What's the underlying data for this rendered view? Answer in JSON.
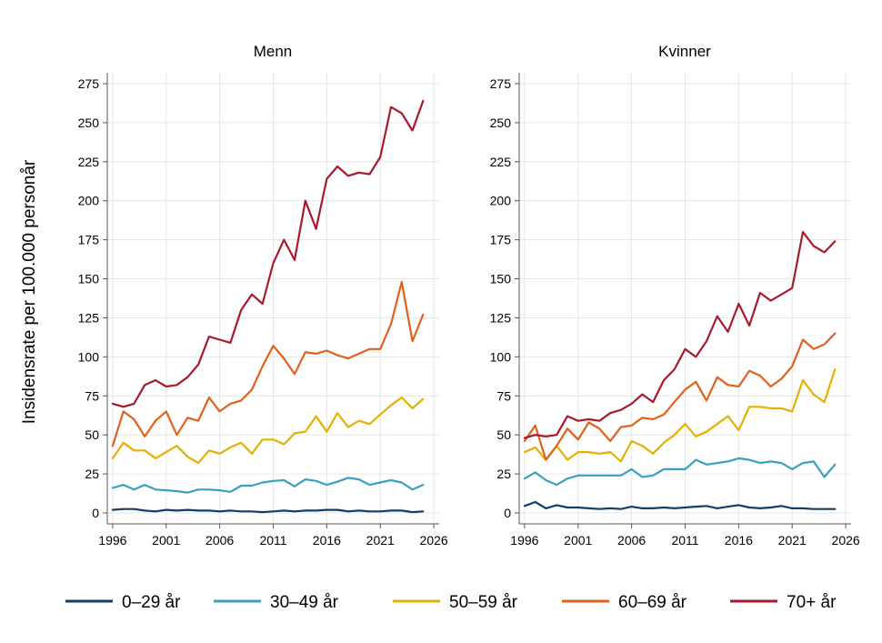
{
  "chart_data": {
    "type": "line",
    "ylabel": "Insidensrate per 100.000 personår",
    "x": [
      1996,
      1997,
      1998,
      1999,
      2000,
      2001,
      2002,
      2003,
      2004,
      2005,
      2006,
      2007,
      2008,
      2009,
      2010,
      2011,
      2012,
      2013,
      2014,
      2015,
      2016,
      2017,
      2018,
      2019,
      2020,
      2021,
      2022,
      2023,
      2024,
      2025
    ],
    "xticks": [
      1996,
      2001,
      2006,
      2011,
      2016,
      2021,
      2026
    ],
    "yticks": [
      0,
      25,
      50,
      75,
      100,
      125,
      150,
      175,
      200,
      225,
      250,
      275
    ],
    "xlim": [
      1995.5,
      2026.5
    ],
    "ylim": [
      0,
      285
    ],
    "grid": true,
    "legend_position": "bottom",
    "colors": {
      "0–29 år": "#123f66",
      "30–49 år": "#3aa0c0",
      "50–59 år": "#e5b100",
      "60–69 år": "#e35f1c",
      "70+ år": "#a8192d"
    },
    "series_names": [
      "0–29 år",
      "30–49 år",
      "50–59 år",
      "60–69 år",
      "70+ år"
    ],
    "panels": [
      {
        "title": "Menn",
        "series": [
          {
            "name": "0–29 år",
            "values": [
              2,
              2.5,
              2.5,
              1.5,
              1,
              2,
              1.5,
              2,
              1.5,
              1.5,
              1,
              1.5,
              1,
              1,
              0.5,
              1,
              1.5,
              1,
              1.5,
              1.5,
              2,
              2,
              1,
              1.5,
              1,
              1,
              1.5,
              1.5,
              0.5,
              1
            ]
          },
          {
            "name": "30–49 år",
            "values": [
              16,
              18,
              15,
              18,
              15,
              14.5,
              14,
              13,
              15,
              15,
              14.5,
              13.5,
              17.5,
              17.5,
              19.5,
              20.5,
              21,
              17,
              21.5,
              20.5,
              18,
              20,
              22.5,
              21.5,
              18,
              19.5,
              21,
              19.5,
              15,
              18
            ]
          },
          {
            "name": "50–59 år",
            "values": [
              35,
              45,
              40,
              40,
              35,
              39,
              43,
              36,
              32,
              40,
              38,
              42,
              45,
              38,
              47,
              47,
              44,
              51,
              52,
              62,
              52,
              64,
              55,
              59,
              57,
              63,
              69,
              74,
              67,
              73
            ]
          },
          {
            "name": "60–69 år",
            "values": [
              43,
              65,
              60,
              49,
              59,
              65,
              50,
              61,
              59,
              74,
              65,
              70,
              72,
              79,
              94,
              107,
              99,
              89,
              103,
              102,
              104,
              101,
              99,
              102,
              105,
              105,
              121,
              148,
              110,
              127
            ]
          },
          {
            "name": "70+ år",
            "values": [
              70,
              68,
              70,
              82,
              85,
              81,
              82,
              87,
              95,
              113,
              111,
              109,
              130,
              140,
              134,
              160,
              175,
              162,
              200,
              182,
              214,
              222,
              216,
              218,
              217,
              228,
              260,
              256,
              245,
              264
            ]
          }
        ]
      },
      {
        "title": "Kvinner",
        "series": [
          {
            "name": "0–29 år",
            "values": [
              4.5,
              7,
              3,
              5,
              3.5,
              3.5,
              3,
              2.5,
              3,
              2.5,
              4,
              3,
              3,
              3.5,
              3,
              3.5,
              4,
              4.5,
              3,
              4,
              5,
              3.5,
              3,
              3.5,
              4.5,
              3,
              3,
              2.5,
              2.5,
              2.5
            ]
          },
          {
            "name": "30–49 år",
            "values": [
              22,
              26,
              21,
              18,
              22,
              24,
              24,
              24,
              24,
              24,
              28,
              23,
              24,
              28,
              28,
              28,
              34,
              31,
              32,
              33,
              35,
              34,
              32,
              33,
              32,
              28,
              32,
              33,
              23,
              31
            ]
          },
          {
            "name": "50–59 år",
            "values": [
              39,
              42,
              34,
              43,
              34,
              39,
              39,
              38,
              39,
              33,
              46,
              43,
              38,
              45,
              50,
              57,
              49,
              52,
              57,
              62,
              53,
              68,
              68,
              67,
              67,
              65,
              85,
              76,
              71,
              92
            ]
          },
          {
            "name": "60–69 år",
            "values": [
              46,
              56,
              34,
              43,
              54,
              47,
              58,
              54,
              46,
              55,
              56,
              61,
              60,
              63,
              71,
              79,
              84,
              72,
              87,
              82,
              81,
              91,
              88,
              81,
              86,
              94,
              111,
              105,
              108,
              115
            ]
          },
          {
            "name": "70+ år",
            "values": [
              48,
              50,
              49,
              50,
              62,
              59,
              60,
              59,
              64,
              66,
              70,
              76,
              71,
              85,
              92,
              105,
              100,
              110,
              126,
              116,
              134,
              120,
              141,
              136,
              140,
              144,
              180,
              171,
              167,
              174
            ]
          }
        ]
      }
    ]
  }
}
